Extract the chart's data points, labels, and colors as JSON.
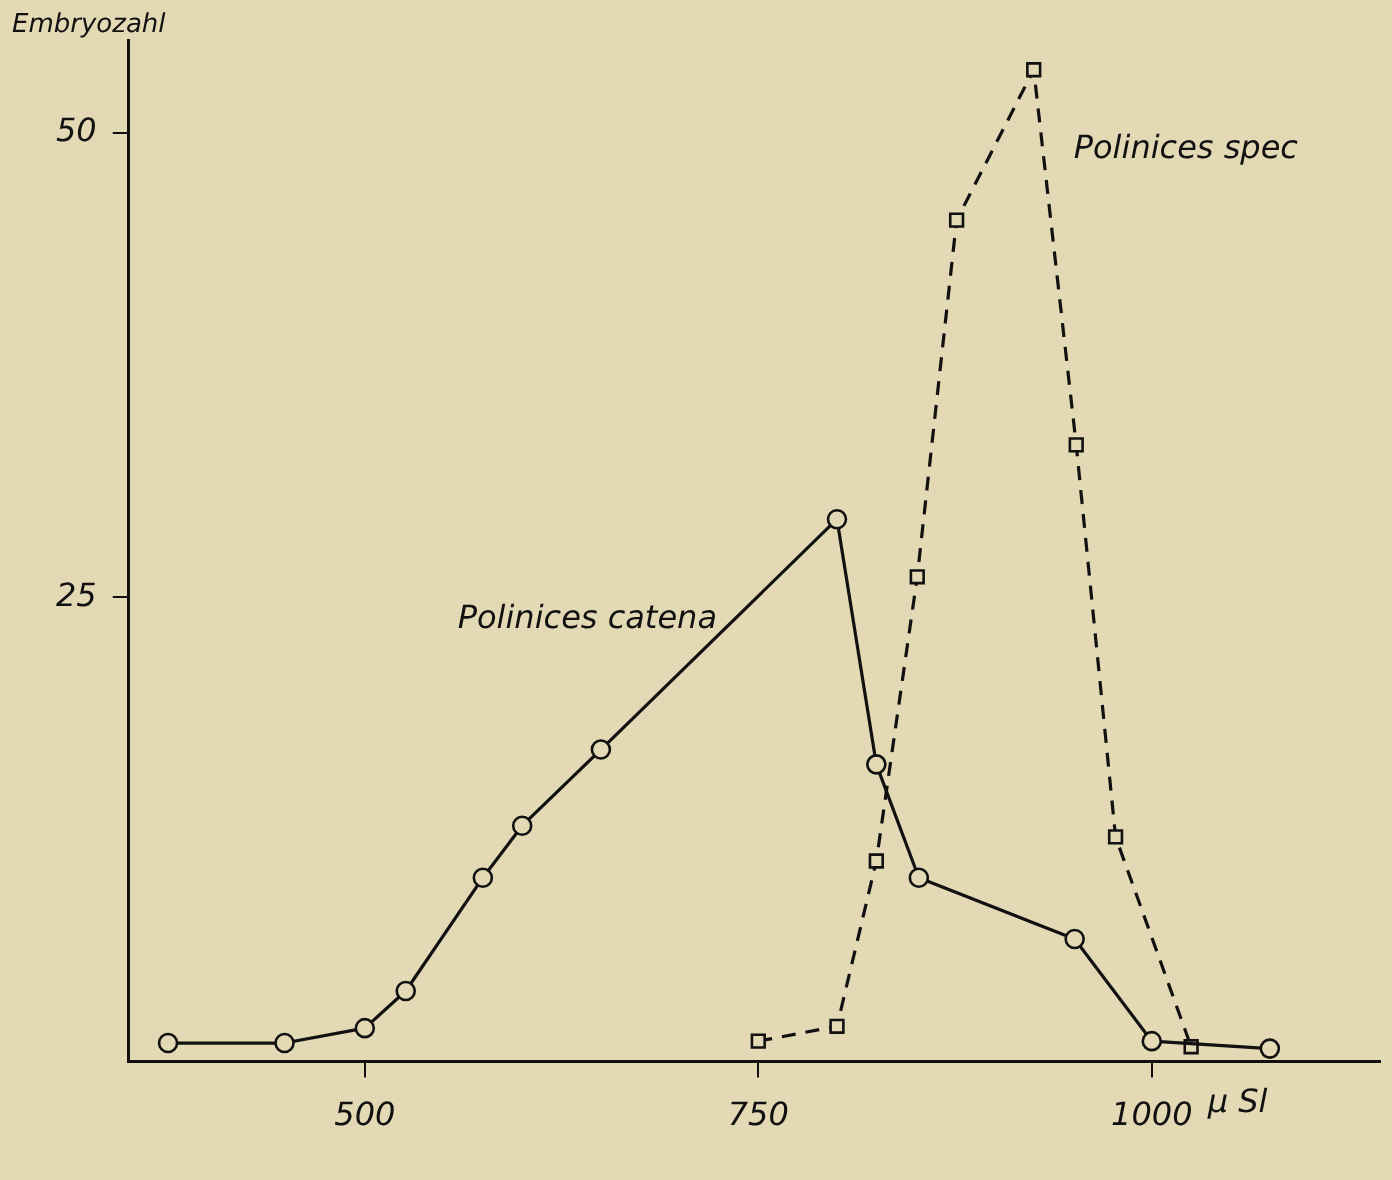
{
  "chart_data": {
    "type": "line",
    "xlabel": "μ Sl",
    "ylabel": "Embryozahl",
    "xlim": [
      350,
      1145
    ],
    "ylim": [
      0,
      55
    ],
    "xticks": [
      500,
      750,
      1000
    ],
    "yticks": [
      25,
      50
    ],
    "grid": false,
    "legend": false,
    "series": [
      {
        "name": "Polinices catena",
        "color": "#111111",
        "marker": "circle",
        "line_style": "solid",
        "x": [
          375,
          449,
          500,
          526,
          575,
          600,
          650,
          800,
          825,
          852,
          951,
          1000,
          1075
        ],
        "values": [
          1.0,
          1.0,
          1.8,
          3.8,
          9.9,
          12.7,
          16.8,
          29.2,
          16.0,
          9.9,
          6.6,
          1.1,
          0.7
        ]
      },
      {
        "name": "Polinices spec",
        "color": "#111111",
        "marker": "square",
        "line_style": "dashed",
        "x": [
          750,
          800,
          825,
          851,
          876,
          925,
          952,
          977,
          1025
        ],
        "values": [
          1.1,
          1.9,
          10.8,
          26.1,
          45.3,
          53.4,
          33.2,
          12.1,
          0.8
        ]
      }
    ]
  }
}
